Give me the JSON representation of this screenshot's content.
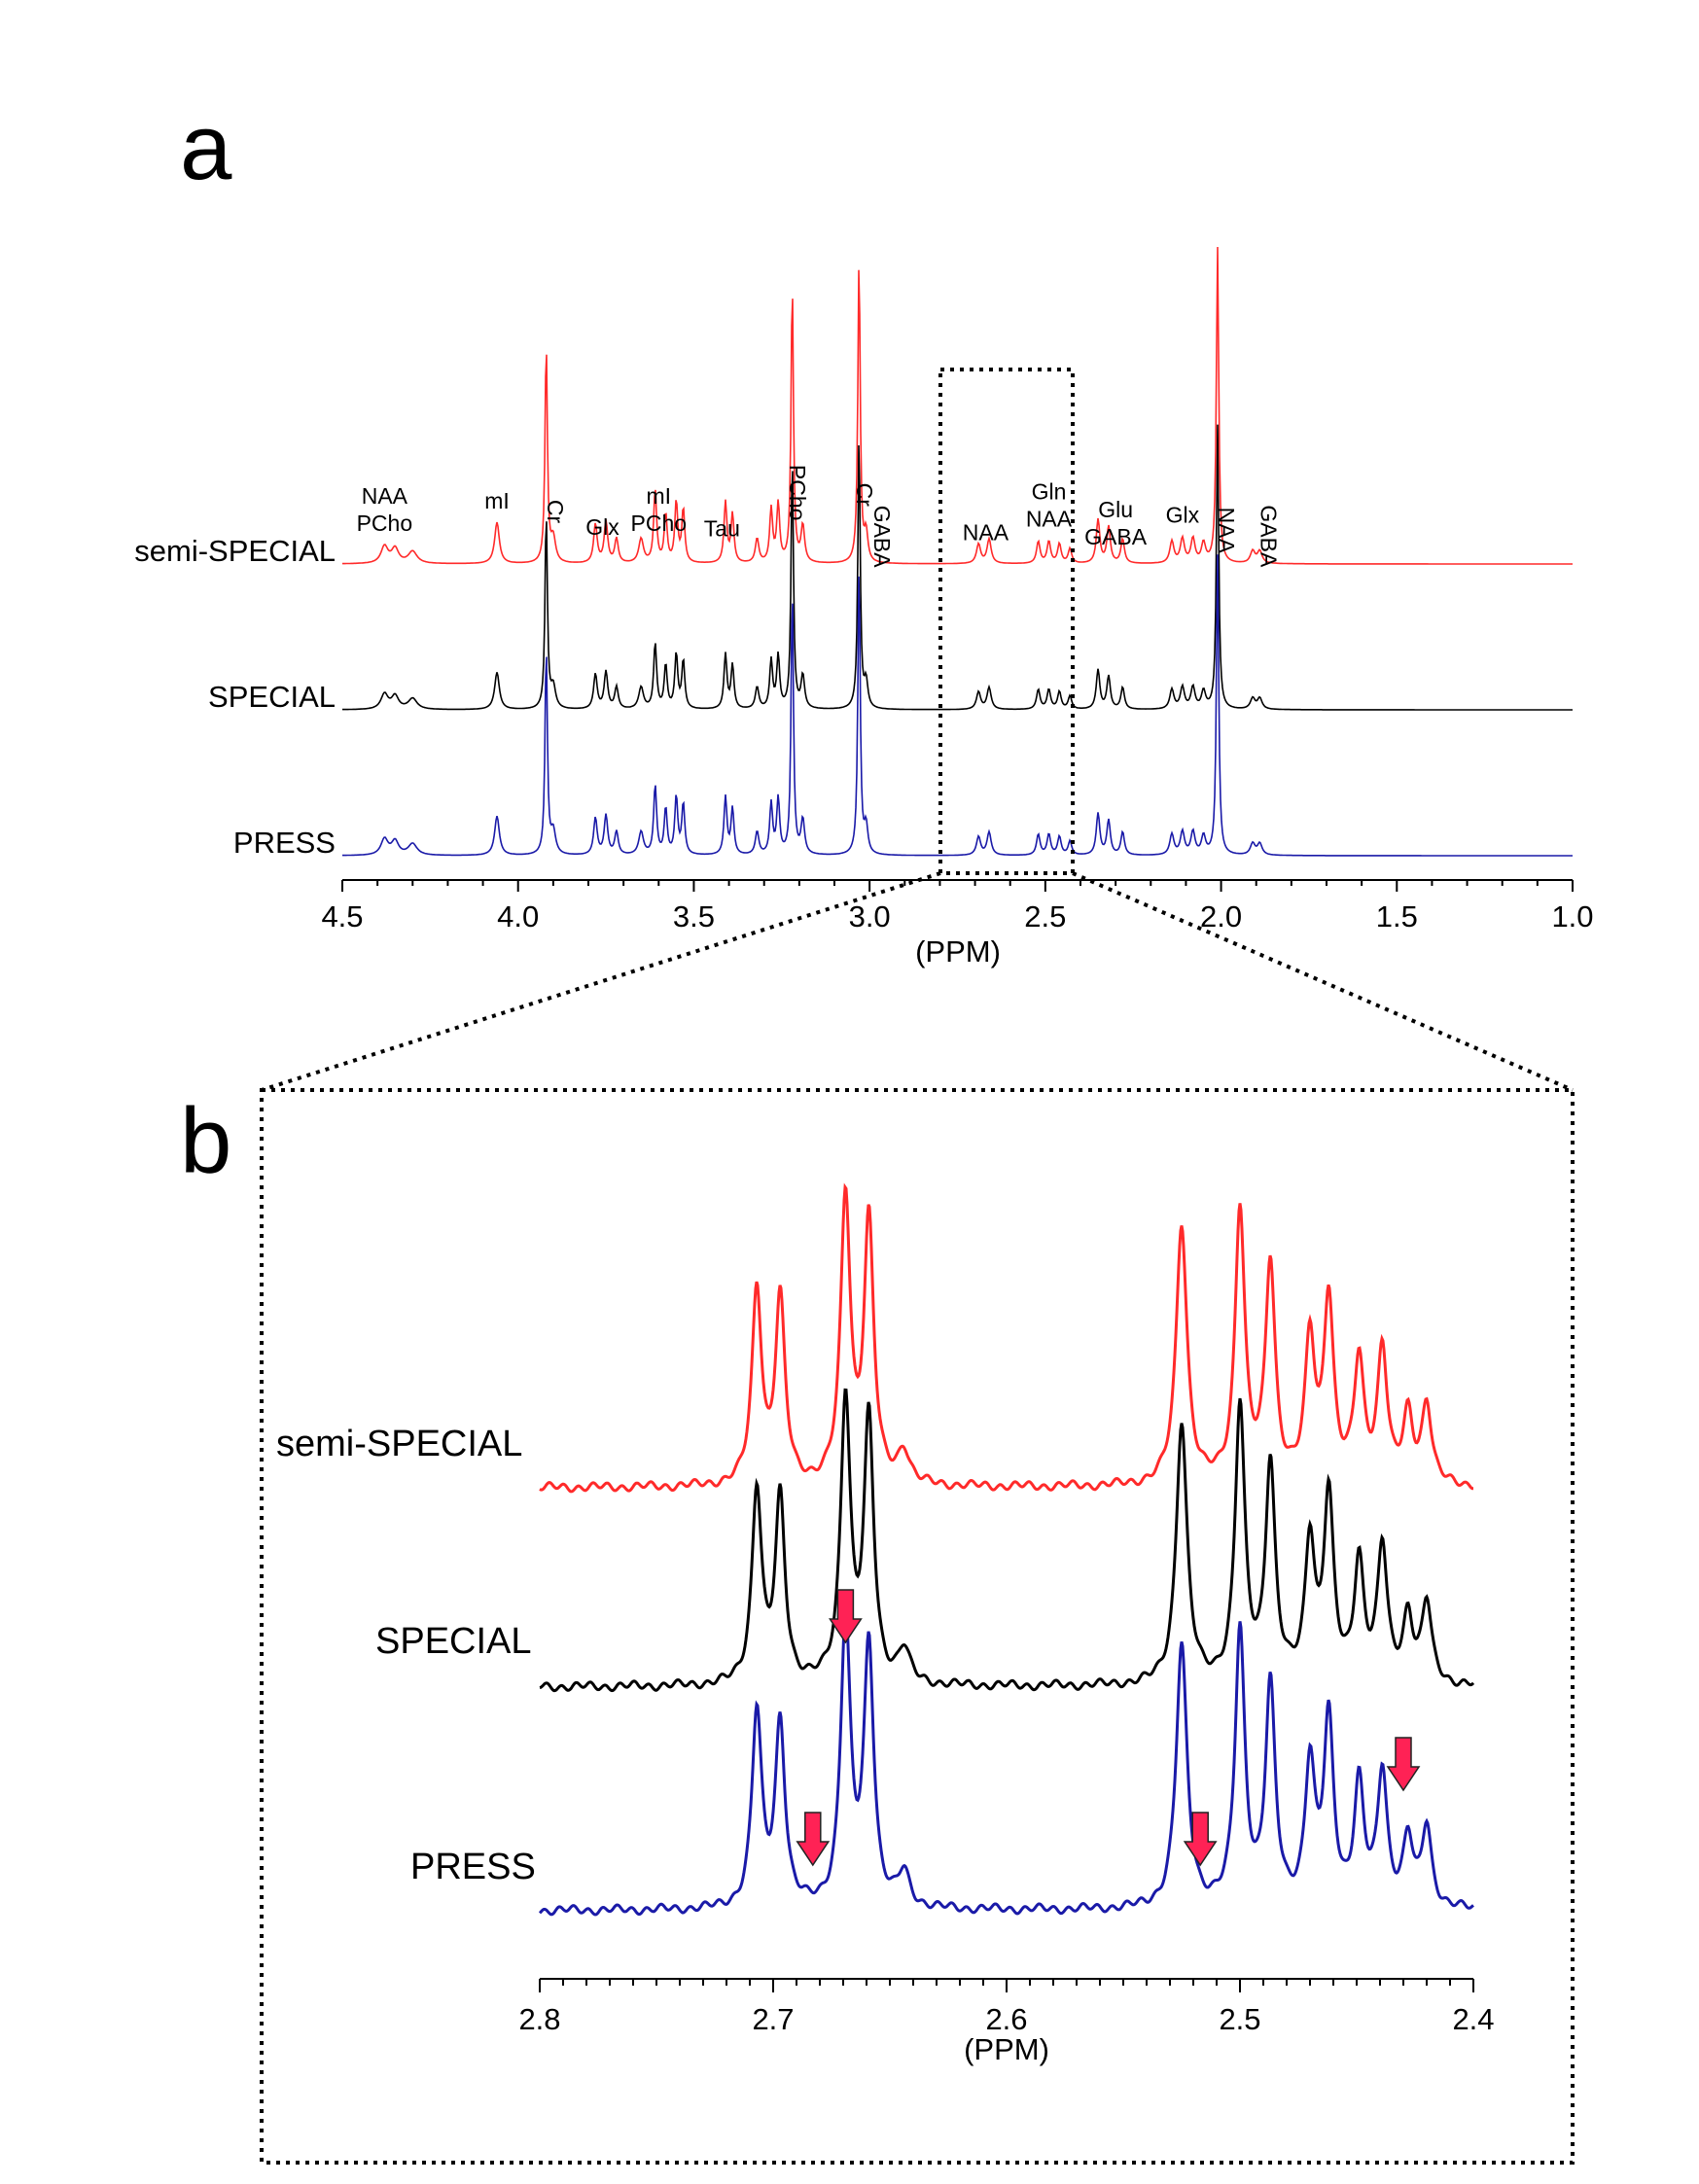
{
  "panels": {
    "a": "a",
    "b": "b"
  },
  "colors": {
    "semi_special": "#ff2a2a",
    "special": "#000000",
    "press": "#1a1aa8",
    "arrow": "#ff2255"
  },
  "chart_data": [
    {
      "type": "line",
      "panel": "a",
      "title": "",
      "xlabel": "(PPM)",
      "xlim": [
        4.5,
        1.0
      ],
      "xticks": [
        "4.5",
        "4.0",
        "3.5",
        "3.0",
        "2.5",
        "2.0",
        "1.5",
        "1.0"
      ],
      "xtick_values": [
        4.5,
        4.0,
        3.5,
        3.0,
        2.5,
        2.0,
        1.5,
        1.0
      ],
      "series": [
        {
          "name": "semi-SPECIAL",
          "color": "#ff2a2a"
        },
        {
          "name": "SPECIAL",
          "color": "#000000"
        },
        {
          "name": "PRESS",
          "color": "#1a1aa8"
        }
      ],
      "peaks": [
        {
          "ppm": 4.38,
          "height": 0.07,
          "width": 0.012
        },
        {
          "ppm": 4.35,
          "height": 0.06,
          "width": 0.012
        },
        {
          "ppm": 4.3,
          "height": 0.05,
          "width": 0.015
        },
        {
          "ppm": 4.06,
          "height": 0.17,
          "width": 0.008
        },
        {
          "ppm": 3.92,
          "height": 0.9,
          "width": 0.004
        },
        {
          "ppm": 3.9,
          "height": 0.1,
          "width": 0.008
        },
        {
          "ppm": 3.78,
          "height": 0.16,
          "width": 0.006
        },
        {
          "ppm": 3.75,
          "height": 0.17,
          "width": 0.006
        },
        {
          "ppm": 3.72,
          "height": 0.1,
          "width": 0.006
        },
        {
          "ppm": 3.65,
          "height": 0.1,
          "width": 0.008
        },
        {
          "ppm": 3.61,
          "height": 0.3,
          "width": 0.005
        },
        {
          "ppm": 3.58,
          "height": 0.2,
          "width": 0.005
        },
        {
          "ppm": 3.55,
          "height": 0.25,
          "width": 0.005
        },
        {
          "ppm": 3.53,
          "height": 0.22,
          "width": 0.005
        },
        {
          "ppm": 3.41,
          "height": 0.25,
          "width": 0.005
        },
        {
          "ppm": 3.39,
          "height": 0.2,
          "width": 0.005
        },
        {
          "ppm": 3.32,
          "height": 0.1,
          "width": 0.006
        },
        {
          "ppm": 3.28,
          "height": 0.22,
          "width": 0.005
        },
        {
          "ppm": 3.26,
          "height": 0.24,
          "width": 0.005
        },
        {
          "ppm": 3.22,
          "height": 1.15,
          "width": 0.004
        },
        {
          "ppm": 3.19,
          "height": 0.15,
          "width": 0.006
        },
        {
          "ppm": 3.03,
          "height": 1.25,
          "width": 0.004
        },
        {
          "ppm": 3.01,
          "height": 0.12,
          "width": 0.006
        },
        {
          "ppm": 2.69,
          "height": 0.08,
          "width": 0.007
        },
        {
          "ppm": 2.66,
          "height": 0.1,
          "width": 0.007
        },
        {
          "ppm": 2.52,
          "height": 0.09,
          "width": 0.006
        },
        {
          "ppm": 2.49,
          "height": 0.09,
          "width": 0.006
        },
        {
          "ppm": 2.46,
          "height": 0.08,
          "width": 0.006
        },
        {
          "ppm": 2.43,
          "height": 0.06,
          "width": 0.006
        },
        {
          "ppm": 2.35,
          "height": 0.18,
          "width": 0.006
        },
        {
          "ppm": 2.32,
          "height": 0.15,
          "width": 0.006
        },
        {
          "ppm": 2.28,
          "height": 0.1,
          "width": 0.006
        },
        {
          "ppm": 2.14,
          "height": 0.09,
          "width": 0.007
        },
        {
          "ppm": 2.11,
          "height": 0.1,
          "width": 0.007
        },
        {
          "ppm": 2.08,
          "height": 0.1,
          "width": 0.007
        },
        {
          "ppm": 2.05,
          "height": 0.08,
          "width": 0.007
        },
        {
          "ppm": 2.01,
          "height": 1.3,
          "width": 0.004
        },
        {
          "ppm": 1.91,
          "height": 0.05,
          "width": 0.008
        },
        {
          "ppm": 1.89,
          "height": 0.05,
          "width": 0.008
        }
      ],
      "annotations": [
        {
          "lines": [
            "NAA",
            "PCho"
          ],
          "ppm": 4.38,
          "vertical": false
        },
        {
          "lines": [
            "mI"
          ],
          "ppm": 4.06,
          "vertical": false
        },
        {
          "lines": [
            "Cr"
          ],
          "ppm": 3.9,
          "vertical": true
        },
        {
          "lines": [
            "Glx"
          ],
          "ppm": 3.76,
          "vertical": false
        },
        {
          "lines": [
            "mI",
            "PCho"
          ],
          "ppm": 3.6,
          "vertical": false
        },
        {
          "lines": [
            "Tau"
          ],
          "ppm": 3.42,
          "vertical": false
        },
        {
          "lines": [
            "PCho"
          ],
          "ppm": 3.21,
          "vertical": true
        },
        {
          "lines": [
            "Cr"
          ],
          "ppm": 3.02,
          "vertical": true
        },
        {
          "lines": [
            "GABA"
          ],
          "ppm": 2.97,
          "vertical": true
        },
        {
          "lines": [
            "NAA"
          ],
          "ppm": 2.67,
          "vertical": false
        },
        {
          "lines": [
            "Gln",
            "NAA"
          ],
          "ppm": 2.49,
          "vertical": false
        },
        {
          "lines": [
            "Glu",
            "GABA"
          ],
          "ppm": 2.3,
          "vertical": false
        },
        {
          "lines": [
            "Glx"
          ],
          "ppm": 2.11,
          "vertical": false
        },
        {
          "lines": [
            "NAA"
          ],
          "ppm": 1.99,
          "vertical": true
        },
        {
          "lines": [
            "GABA"
          ],
          "ppm": 1.87,
          "vertical": true
        }
      ]
    },
    {
      "type": "line",
      "panel": "b",
      "title": "",
      "xlabel": "(PPM)",
      "xlim": [
        2.8,
        2.4
      ],
      "xticks": [
        "2.8",
        "2.7",
        "2.6",
        "2.5",
        "2.4"
      ],
      "xtick_values": [
        2.8,
        2.7,
        2.6,
        2.5,
        2.4
      ],
      "series": [
        {
          "name": "semi-SPECIAL",
          "color": "#ff2a2a"
        },
        {
          "name": "SPECIAL",
          "color": "#000000"
        },
        {
          "name": "PRESS",
          "color": "#1a1aa8"
        }
      ],
      "peaks": [
        {
          "ppm": 2.707,
          "height": 0.58,
          "width": 0.0025
        },
        {
          "ppm": 2.697,
          "height": 0.55,
          "width": 0.0025
        },
        {
          "ppm": 2.669,
          "height": 0.85,
          "width": 0.0025
        },
        {
          "ppm": 2.659,
          "height": 0.78,
          "width": 0.0025
        },
        {
          "ppm": 2.644,
          "height": 0.1,
          "width": 0.003
        },
        {
          "ppm": 2.525,
          "height": 0.78,
          "width": 0.0028
        },
        {
          "ppm": 2.5,
          "height": 0.82,
          "width": 0.0025
        },
        {
          "ppm": 2.487,
          "height": 0.65,
          "width": 0.0025
        },
        {
          "ppm": 2.47,
          "height": 0.42,
          "width": 0.0025
        },
        {
          "ppm": 2.462,
          "height": 0.55,
          "width": 0.0025
        },
        {
          "ppm": 2.449,
          "height": 0.36,
          "width": 0.0025
        },
        {
          "ppm": 2.439,
          "height": 0.4,
          "width": 0.0025
        },
        {
          "ppm": 2.428,
          "height": 0.2,
          "width": 0.0025
        },
        {
          "ppm": 2.42,
          "height": 0.24,
          "width": 0.0025
        }
      ],
      "arrows_ppm": [
        2.669,
        2.683,
        2.517,
        2.43
      ]
    }
  ]
}
